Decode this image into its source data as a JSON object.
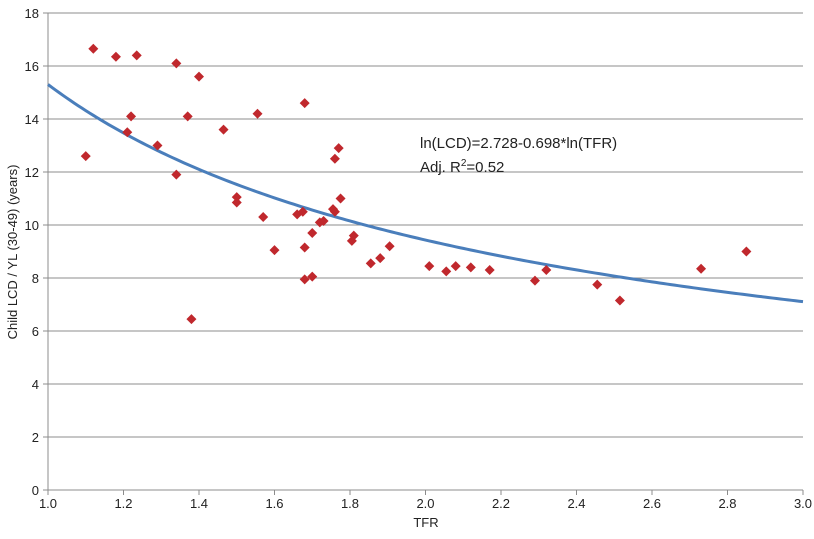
{
  "chart_data": {
    "type": "scatter",
    "title": "",
    "xlabel": "TFR",
    "ylabel": "Child LCD / YL (30-49) (years)",
    "xlim": [
      1.0,
      3.0
    ],
    "ylim": [
      0,
      18
    ],
    "xticks": [
      "1.0",
      "1.2",
      "1.4",
      "1.6",
      "1.8",
      "2.0",
      "2.2",
      "2.4",
      "2.6",
      "2.8",
      "3.0"
    ],
    "yticks": [
      "0",
      "2",
      "4",
      "6",
      "8",
      "10",
      "12",
      "14",
      "16",
      "18"
    ],
    "grid": "horizontal",
    "annotation": {
      "equation": "ln(LCD)=2.728-0.698*ln(TFR)",
      "r2_prefix": "Adj. R",
      "r2_sup": "2",
      "r2_suffix": "=0.52"
    },
    "fit": {
      "a": 2.728,
      "b": -0.698,
      "color": "#4a7ebb"
    },
    "marker_color": "#c0282d",
    "points": [
      [
        1.1,
        12.6
      ],
      [
        1.12,
        16.65
      ],
      [
        1.18,
        16.35
      ],
      [
        1.21,
        13.5
      ],
      [
        1.22,
        14.1
      ],
      [
        1.235,
        16.4
      ],
      [
        1.29,
        13.0
      ],
      [
        1.34,
        11.9
      ],
      [
        1.34,
        16.1
      ],
      [
        1.37,
        14.1
      ],
      [
        1.38,
        6.45
      ],
      [
        1.4,
        15.6
      ],
      [
        1.465,
        13.6
      ],
      [
        1.5,
        11.05
      ],
      [
        1.5,
        10.85
      ],
      [
        1.555,
        14.2
      ],
      [
        1.57,
        10.3
      ],
      [
        1.6,
        9.05
      ],
      [
        1.66,
        10.4
      ],
      [
        1.675,
        10.5
      ],
      [
        1.68,
        14.6
      ],
      [
        1.68,
        9.15
      ],
      [
        1.68,
        7.95
      ],
      [
        1.7,
        9.7
      ],
      [
        1.7,
        8.05
      ],
      [
        1.72,
        10.1
      ],
      [
        1.73,
        10.15
      ],
      [
        1.755,
        10.6
      ],
      [
        1.76,
        10.5
      ],
      [
        1.76,
        12.5
      ],
      [
        1.77,
        12.9
      ],
      [
        1.775,
        11.0
      ],
      [
        1.805,
        9.4
      ],
      [
        1.81,
        9.6
      ],
      [
        1.855,
        8.55
      ],
      [
        1.88,
        8.75
      ],
      [
        1.905,
        9.2
      ],
      [
        2.01,
        8.45
      ],
      [
        2.055,
        8.25
      ],
      [
        2.08,
        8.45
      ],
      [
        2.12,
        8.4
      ],
      [
        2.17,
        8.3
      ],
      [
        2.29,
        7.9
      ],
      [
        2.32,
        8.3
      ],
      [
        2.455,
        7.75
      ],
      [
        2.515,
        7.15
      ],
      [
        2.73,
        8.35
      ],
      [
        2.85,
        9.0
      ]
    ]
  }
}
